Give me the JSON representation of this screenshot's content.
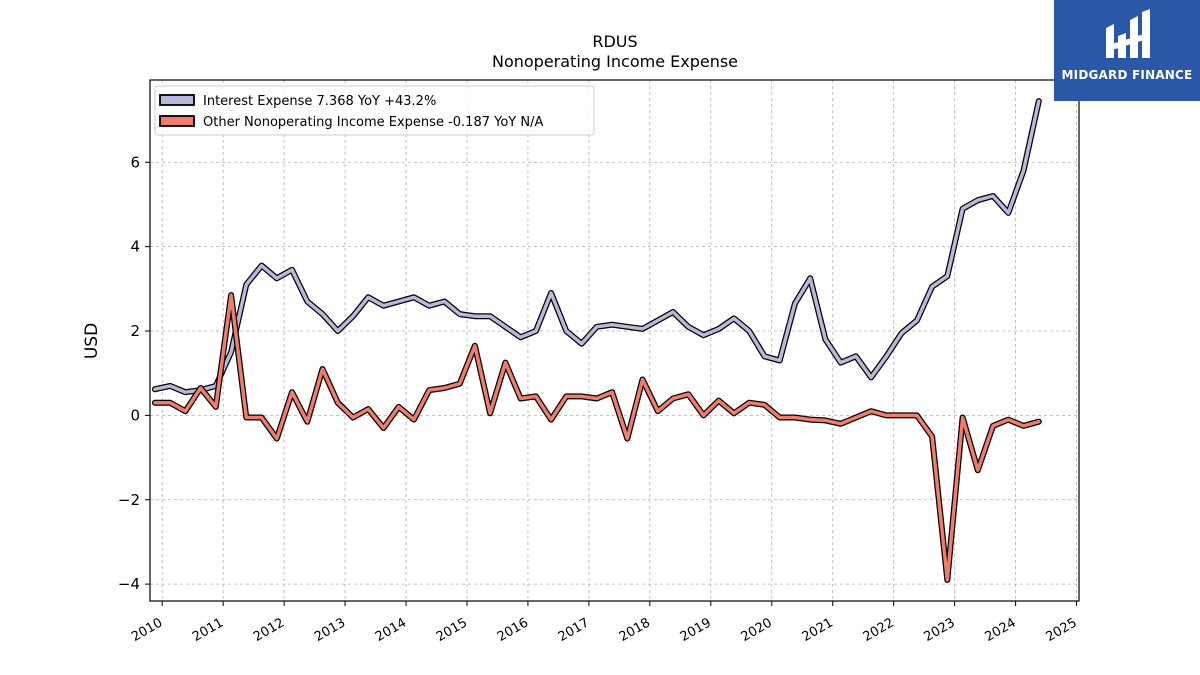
{
  "chart_data": {
    "type": "line",
    "title": "RDUS",
    "subtitle": "Nonoperating Income Expense",
    "ylabel": "USD",
    "xlabel": "",
    "xlim": [
      2009.8,
      2025.04
    ],
    "ylim": [
      -4.4,
      7.95
    ],
    "yticks": [
      -4,
      -2,
      0,
      2,
      4,
      6
    ],
    "xticks": [
      2010,
      2011,
      2012,
      2013,
      2014,
      2015,
      2016,
      2017,
      2018,
      2019,
      2020,
      2021,
      2022,
      2023,
      2024,
      2025
    ],
    "grid": true,
    "legend_position": "top-left",
    "x": [
      2009.88,
      2010.13,
      2010.38,
      2010.63,
      2010.88,
      2011.13,
      2011.38,
      2011.63,
      2011.88,
      2012.13,
      2012.38,
      2012.63,
      2012.88,
      2013.13,
      2013.38,
      2013.63,
      2013.88,
      2014.13,
      2014.38,
      2014.63,
      2014.88,
      2015.13,
      2015.38,
      2015.63,
      2015.88,
      2016.13,
      2016.38,
      2016.63,
      2016.88,
      2017.13,
      2017.38,
      2017.63,
      2017.88,
      2018.13,
      2018.38,
      2018.63,
      2018.88,
      2019.13,
      2019.38,
      2019.63,
      2019.88,
      2020.13,
      2020.38,
      2020.63,
      2020.88,
      2021.13,
      2021.38,
      2021.63,
      2021.88,
      2022.13,
      2022.38,
      2022.63,
      2022.88,
      2023.13,
      2023.38,
      2023.63,
      2023.88,
      2024.13,
      2024.38
    ],
    "series": [
      {
        "name": "Interest Expense",
        "legend_label": "Interest Expense  7.368 YoY +43.2%",
        "color": "#b8b8db",
        "values": [
          0.62,
          0.7,
          0.55,
          0.6,
          0.7,
          1.5,
          3.1,
          3.55,
          3.25,
          3.45,
          2.7,
          2.4,
          2.0,
          2.35,
          2.8,
          2.6,
          2.7,
          2.8,
          2.6,
          2.7,
          2.4,
          2.35,
          2.35,
          2.1,
          1.85,
          2.0,
          2.9,
          2.0,
          1.7,
          2.1,
          2.15,
          2.1,
          2.05,
          2.25,
          2.45,
          2.1,
          1.9,
          2.05,
          2.3,
          2.0,
          1.4,
          1.3,
          2.65,
          3.25,
          1.8,
          1.25,
          1.4,
          0.9,
          1.4,
          1.95,
          2.25,
          3.05,
          3.3,
          4.9,
          5.1,
          5.2,
          4.8,
          5.8,
          7.45
        ]
      },
      {
        "name": "Other Nonoperating Income Expense",
        "legend_label": "Other Nonoperating Income Expense  -0.187 YoY N/A",
        "color": "#f07c6c",
        "values": [
          0.3,
          0.3,
          0.1,
          0.65,
          0.2,
          2.85,
          -0.05,
          -0.05,
          -0.55,
          0.55,
          -0.15,
          1.1,
          0.3,
          -0.05,
          0.15,
          -0.3,
          0.2,
          -0.1,
          0.6,
          0.65,
          0.75,
          1.65,
          0.05,
          1.25,
          0.4,
          0.45,
          -0.1,
          0.45,
          0.45,
          0.4,
          0.55,
          -0.55,
          0.85,
          0.1,
          0.4,
          0.5,
          0.0,
          0.35,
          0.05,
          0.3,
          0.25,
          -0.05,
          -0.05,
          -0.1,
          -0.12,
          -0.2,
          -0.05,
          0.1,
          0.0,
          0.0,
          0.0,
          -0.5,
          -3.9,
          -0.05,
          -1.3,
          -0.25,
          -0.1,
          -0.25,
          -0.15
        ]
      }
    ]
  },
  "logo": {
    "text": "MIDGARD FINANCE"
  }
}
